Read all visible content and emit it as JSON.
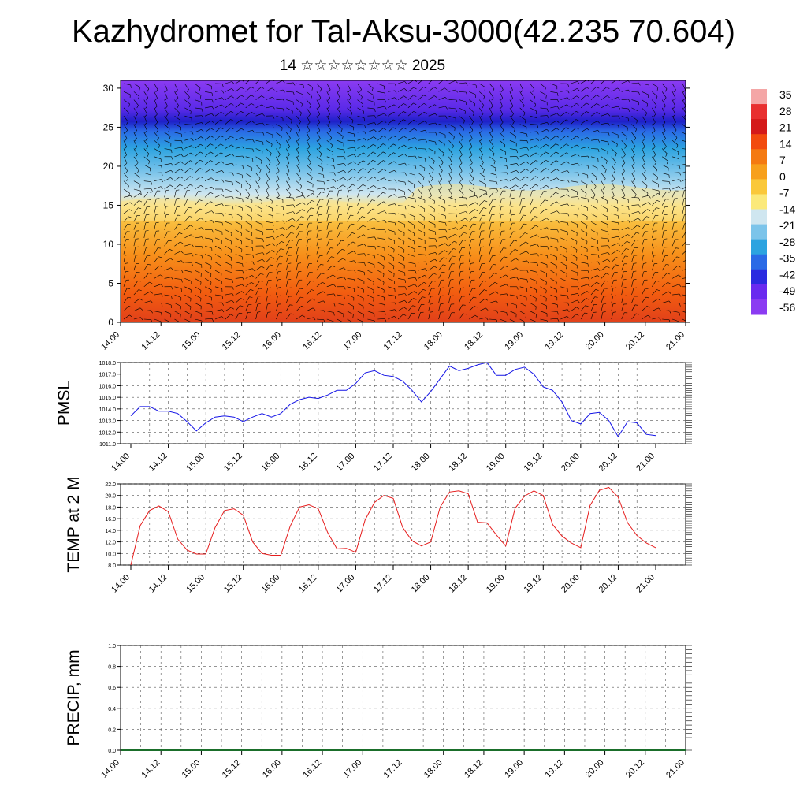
{
  "title": "Kazhydromet for Tal-Aksu-3000(42.235 70.604)",
  "subtitle": "14 ☆☆☆☆☆☆☆☆ 2025",
  "x_ticks": [
    "14.00",
    "14.12",
    "15.00",
    "15.12",
    "16.00",
    "16.12",
    "17.00",
    "17.12",
    "18.00",
    "18.12",
    "19.00",
    "19.12",
    "20.00",
    "20.12",
    "21.00"
  ],
  "chart_data": [
    {
      "type": "heatmap",
      "title": "",
      "description": "Temperature vs height with wind barbs",
      "xlabel": "",
      "ylabel": "",
      "y_ticks": [
        0,
        5,
        10,
        15,
        20,
        25,
        30
      ],
      "ylim": [
        0,
        31
      ],
      "colorbar_labels": [
        "35",
        "28",
        "21",
        "14",
        "7",
        "0",
        "-7",
        "-14",
        "-21",
        "-28",
        "-35",
        "-42",
        "-49",
        "-56"
      ],
      "colorbar_colors": [
        "#f4a6a6",
        "#e83030",
        "#d41a1a",
        "#f24b0e",
        "#f47a12",
        "#f7a01c",
        "#fac83a",
        "#fbe97a",
        "#cfe6f0",
        "#7cc4ea",
        "#2ca3e0",
        "#2a6ae6",
        "#2b2ae0",
        "#6a2aef",
        "#8b3bf2"
      ]
    },
    {
      "type": "line",
      "ylabel": "PMSL",
      "ylim": [
        1011.0,
        1018.0
      ],
      "y_ticks": [
        "1011.0",
        "1012.0",
        "1013.0",
        "1014.0",
        "1015.0",
        "1016.0",
        "1017.0",
        "1018.0"
      ],
      "color": "#1414e6",
      "values": [
        1013.4,
        1014.2,
        1014.2,
        1013.8,
        1013.8,
        1013.6,
        1012.9,
        1012.1,
        1012.8,
        1013.3,
        1013.4,
        1013.3,
        1012.9,
        1013.3,
        1013.6,
        1013.3,
        1013.6,
        1014.4,
        1014.8,
        1015.0,
        1014.9,
        1015.2,
        1015.6,
        1015.6,
        1016.2,
        1017.1,
        1017.3,
        1016.9,
        1016.8,
        1016.4,
        1015.6,
        1014.6,
        1015.5,
        1016.6,
        1017.7,
        1017.3,
        1017.5,
        1017.8,
        1018.0,
        1016.9,
        1016.9,
        1017.4,
        1017.6,
        1017.0,
        1015.9,
        1015.6,
        1014.6,
        1013.0,
        1012.7,
        1013.6,
        1013.7,
        1013.0,
        1011.6,
        1012.9,
        1012.8,
        1011.8,
        1011.7
      ]
    },
    {
      "type": "line",
      "ylabel": "TEMP at 2 M",
      "ylim": [
        8.0,
        22.0
      ],
      "y_ticks": [
        "8.0",
        "10.0",
        "12.0",
        "14.0",
        "16.0",
        "18.0",
        "20.0",
        "22.0"
      ],
      "color": "#e61e1e",
      "values": [
        8.0,
        14.8,
        17.4,
        18.2,
        17.2,
        12.5,
        10.6,
        9.9,
        9.9,
        14.5,
        17.4,
        17.7,
        16.6,
        12.0,
        10.0,
        9.7,
        9.7,
        14.7,
        18.0,
        18.4,
        17.7,
        13.6,
        10.8,
        10.9,
        10.2,
        15.8,
        18.8,
        20.0,
        19.5,
        14.5,
        12.2,
        11.3,
        12.0,
        18.0,
        20.6,
        20.8,
        20.3,
        15.4,
        15.3,
        13.2,
        11.3,
        17.8,
        19.9,
        20.8,
        20.0,
        15.0,
        13.0,
        11.8,
        11.0,
        18.3,
        20.9,
        21.4,
        19.7,
        15.3,
        13.1,
        11.8,
        11.0
      ]
    },
    {
      "type": "line",
      "ylabel": "PRECIP, mm",
      "ylim": [
        0.0,
        1.0
      ],
      "y_ticks": [
        "0.0",
        "0.2",
        "0.4",
        "0.6",
        "0.8",
        "1.0"
      ],
      "color": "#1a6e2a",
      "values": [
        0,
        0,
        0,
        0,
        0,
        0,
        0,
        0,
        0,
        0,
        0,
        0,
        0,
        0,
        0,
        0,
        0,
        0,
        0,
        0,
        0,
        0,
        0,
        0,
        0,
        0,
        0,
        0,
        0,
        0,
        0,
        0,
        0,
        0,
        0,
        0,
        0,
        0,
        0,
        0,
        0,
        0,
        0,
        0,
        0,
        0,
        0,
        0,
        0,
        0,
        0,
        0,
        0,
        0,
        0,
        0,
        0
      ]
    }
  ]
}
